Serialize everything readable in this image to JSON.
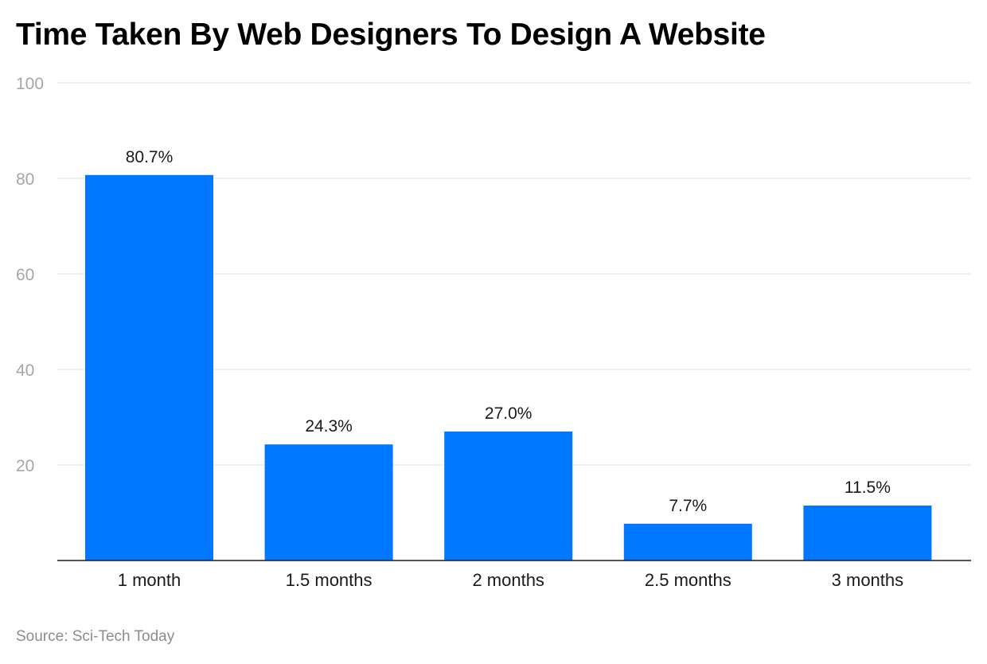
{
  "chart_data": {
    "type": "bar",
    "title": "Time Taken By Web Designers To Design A Website",
    "categories": [
      "1 month",
      "1.5 months",
      "2 months",
      "2.5 months",
      "3 months"
    ],
    "values": [
      80.7,
      24.3,
      27.0,
      7.7,
      11.5
    ],
    "data_labels": [
      "80.7%",
      "24.3%",
      "27.0%",
      "7.7%",
      "11.5%"
    ],
    "xlabel": "",
    "ylabel": "",
    "ylim": [
      0,
      100
    ],
    "yticks": [
      20,
      40,
      60,
      80,
      100
    ],
    "grid": true,
    "bar_color": "#0077ff",
    "source": "Source: Sci-Tech Today"
  }
}
